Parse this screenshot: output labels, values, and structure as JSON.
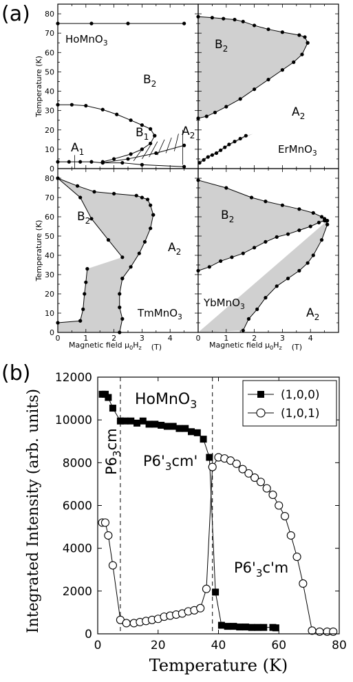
{
  "figure": {
    "panel_a_label": "(a)",
    "panel_b_label": "(b)"
  },
  "chart_data": [
    {
      "type": "line",
      "panel": "a",
      "subplot": "HoMnO3",
      "compound_label": "HoMnO3",
      "ylabel": "Temperature (K)",
      "xlabel": "",
      "xlim": [
        0,
        5
      ],
      "ylim": [
        0,
        85
      ],
      "yticks": [
        0,
        10,
        20,
        30,
        40,
        50,
        60,
        70,
        80
      ],
      "phase_labels": [
        "B2",
        "B1",
        "A1",
        "A2"
      ],
      "series": [
        {
          "values_x": [
            0,
            1.2,
            2.5,
            4.5
          ],
          "values_y": [
            75,
            75,
            75,
            75
          ]
        },
        {
          "values_x": [
            0,
            0.5,
            1,
            1.6,
            2.1,
            2.6,
            3.0,
            3.3,
            3.45
          ],
          "values_y": [
            33,
            33,
            32.5,
            30.5,
            28,
            25,
            22.5,
            20.5,
            17
          ]
        },
        {
          "values_x": [
            3.45,
            3.3,
            3.0,
            2.6,
            2.0,
            1.6
          ],
          "values_y": [
            17,
            13,
            10,
            7.5,
            5,
            3.5
          ]
        },
        {
          "values_x": [
            0,
            0.4,
            0.8,
            1.2,
            1.6,
            2.3,
            3.0,
            4.5
          ],
          "values_y": [
            3.5,
            3.5,
            3.5,
            3.5,
            3,
            3,
            2,
            1
          ]
        },
        {
          "values_x": [
            1.6,
            2.5,
            3.5,
            4.5
          ],
          "values_y": [
            3,
            5,
            8,
            12
          ]
        }
      ]
    },
    {
      "type": "area",
      "panel": "a",
      "subplot": "ErMnO3",
      "compound_label": "ErMnO3",
      "ylabel": "",
      "xlabel": "",
      "xlim": [
        0,
        5
      ],
      "ylim": [
        0,
        85
      ],
      "phase_labels": [
        "B2",
        "A2"
      ],
      "series": [
        {
          "values_x": [
            0,
            0.5,
            0.9,
            1.3,
            1.6,
            2.0,
            2.5,
            3.0,
            3.6,
            3.8,
            3.9
          ],
          "values_y": [
            78.5,
            78,
            77.5,
            77,
            76,
            74,
            72,
            70.5,
            69,
            68,
            65
          ]
        },
        {
          "values_x": [
            0,
            0.3,
            0.6,
            1.0,
            1.5,
            2.0,
            2.5,
            3.0,
            3.4,
            3.7,
            3.9
          ],
          "values_y": [
            26,
            27,
            29,
            32,
            36,
            41,
            46,
            51,
            55,
            59,
            65
          ]
        },
        {
          "values_x": [
            0.05,
            0.2,
            0.35,
            0.5,
            0.65,
            0.8,
            0.95,
            1.1,
            1.3,
            1.5,
            1.7
          ],
          "values_y": [
            3,
            4.5,
            6,
            7,
            8,
            9.5,
            11,
            12.5,
            14,
            15.5,
            17
          ]
        }
      ]
    },
    {
      "type": "area",
      "panel": "a",
      "subplot": "TmMnO3",
      "compound_label": "TmMnO3",
      "ylabel": "Temperature (K)",
      "xlabel": "Magnetic field μ0Hz (T)",
      "xlim": [
        0,
        5
      ],
      "ylim": [
        0,
        85
      ],
      "yticks": [
        0,
        10,
        20,
        30,
        40,
        50,
        60,
        70,
        80
      ],
      "xticks": [
        0,
        1,
        2,
        3,
        4
      ],
      "phase_labels": [
        "B2",
        "A2"
      ],
      "series": [
        {
          "values_x": [
            0,
            0.7,
            1.3,
            2.0,
            2.8,
            3.0,
            3.2,
            3.3,
            3.4
          ],
          "values_y": [
            80,
            76,
            73,
            72,
            71,
            70,
            69,
            66,
            61
          ]
        },
        {
          "values_x": [
            3.4,
            3.3,
            3.1,
            2.9,
            2.6,
            2.3
          ],
          "values_y": [
            61,
            54,
            47,
            41,
            34,
            28
          ]
        },
        {
          "values_x": [
            2.3,
            2.2,
            2.2,
            2.3,
            2.2
          ],
          "values_y": [
            28,
            20,
            13,
            7,
            0
          ]
        },
        {
          "values_x": [
            0,
            0.8,
            1.2,
            1.8,
            2.3
          ],
          "values_y": [
            80,
            70,
            59,
            48,
            39
          ]
        },
        {
          "values_x": [
            0.8,
            0.9,
            0.95,
            1.0,
            1.05
          ],
          "values_y": [
            6,
            12,
            20,
            26,
            33
          ]
        },
        {
          "values_x": [
            0,
            0.8
          ],
          "values_y": [
            5,
            6
          ]
        }
      ]
    },
    {
      "type": "area",
      "panel": "a",
      "subplot": "YbMnO3",
      "compound_label": "YbMnO3",
      "ylabel": "",
      "xlabel": "Magnetic field μ0Hz (T)",
      "xlim": [
        0,
        5
      ],
      "ylim": [
        0,
        85
      ],
      "xticks": [
        0,
        1,
        2,
        3,
        4
      ],
      "phase_labels": [
        "B2",
        "A2"
      ],
      "series": [
        {
          "values_x": [
            0,
            1.0,
            1.9,
            2.4,
            3.0,
            3.6,
            4.1,
            4.4,
            4.5,
            4.55,
            4.6
          ],
          "values_y": [
            79,
            75,
            70,
            68,
            66,
            64,
            62,
            60,
            59,
            58,
            56
          ]
        },
        {
          "values_x": [
            0,
            0.4,
            0.8,
            1.2,
            1.6,
            2.0,
            2.4,
            2.8,
            3.2,
            3.6,
            4.0,
            4.3,
            4.5,
            4.6
          ],
          "values_y": [
            32,
            34,
            37,
            39,
            41,
            44,
            47,
            49.5,
            51,
            53,
            55,
            57,
            58,
            58
          ]
        },
        {
          "values_x": [
            4.6,
            4.4,
            4.1,
            3.9,
            3.6,
            3.2,
            2.8,
            2.4,
            2.1,
            1.8,
            1.6
          ],
          "values_y": [
            56,
            48,
            40,
            36,
            32,
            28,
            24,
            18,
            12,
            7,
            1
          ]
        }
      ]
    },
    {
      "type": "scatter",
      "panel": "b",
      "title": "",
      "compound_label": "HoMnO3",
      "xlabel": "Temperature (K)",
      "ylabel": "Integrated Intensity (arb. units)",
      "xlim": [
        0,
        80
      ],
      "ylim": [
        0,
        12000
      ],
      "xticks": [
        0,
        20,
        40,
        60,
        80
      ],
      "yticks": [
        0,
        2000,
        4000,
        6000,
        8000,
        10000,
        12000
      ],
      "phase_labels": [
        "P63cm",
        "P6'3cm'",
        "P6'3c'm"
      ],
      "vlines": [
        7.5,
        38
      ],
      "legend": "top-right",
      "series": [
        {
          "name": "(1,0,0)",
          "marker": "filled-square",
          "x": [
            1.5,
            2.5,
            3.5,
            5,
            7.5,
            9,
            11,
            13,
            15,
            17,
            19,
            21,
            23,
            25,
            27,
            29,
            31,
            33,
            35,
            37,
            39,
            41,
            43,
            45,
            47,
            49,
            51,
            53,
            55,
            58,
            59
          ],
          "y": [
            11200,
            11200,
            11050,
            10550,
            9950,
            9950,
            9950,
            9850,
            9950,
            9800,
            9800,
            9750,
            9700,
            9700,
            9600,
            9600,
            9450,
            9400,
            9100,
            8250,
            1950,
            400,
            350,
            350,
            320,
            320,
            300,
            300,
            300,
            300,
            280
          ]
        },
        {
          "name": "(1,0,1)",
          "marker": "open-circle",
          "x": [
            1.5,
            2.5,
            3.5,
            5,
            7.5,
            9.5,
            12,
            14,
            16,
            18,
            20,
            22,
            24,
            26,
            28,
            30,
            32,
            34,
            36,
            38,
            40,
            42,
            44,
            46,
            48,
            50,
            52,
            54,
            56,
            58,
            60,
            62,
            64,
            66,
            68,
            71,
            73.5,
            76,
            78
          ],
          "y": [
            5200,
            5200,
            4600,
            3200,
            650,
            500,
            500,
            550,
            600,
            650,
            700,
            800,
            850,
            900,
            950,
            1050,
            1100,
            1200,
            2100,
            7800,
            8250,
            8200,
            8100,
            7950,
            7700,
            7500,
            7300,
            7100,
            6800,
            6500,
            6000,
            5500,
            4600,
            3600,
            2350,
            150,
            100,
            100,
            100
          ]
        }
      ]
    }
  ]
}
